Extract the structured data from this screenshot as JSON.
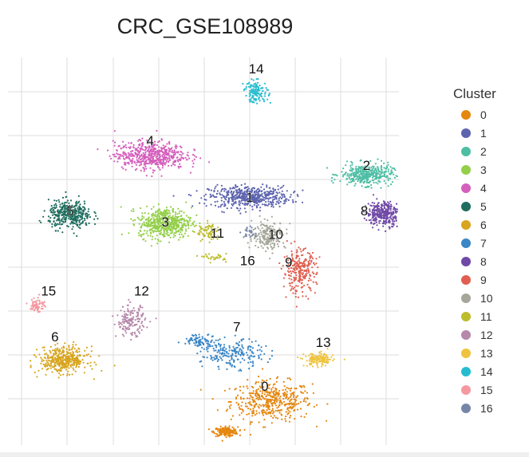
{
  "chart_data": {
    "type": "scatter",
    "title": "CRC_GSE108989",
    "xlabel": "",
    "ylabel": "",
    "grid": true,
    "legend": {
      "title": "Cluster",
      "placement": "right"
    },
    "clusters": [
      {
        "label": "0",
        "color": "#E5870F",
        "centers": [
          {
            "x": 0.05,
            "y": -3.5,
            "sx": 0.85,
            "sy": 0.65
          },
          {
            "x": -1.0,
            "y": -4.6,
            "sx": 0.25,
            "sy": 0.15
          }
        ],
        "count": 900
      },
      {
        "label": "1",
        "color": "#5D64AE",
        "centers": [
          {
            "x": -0.45,
            "y": 3.9,
            "sx": 0.85,
            "sy": 0.35
          }
        ],
        "count": 520
      },
      {
        "label": "2",
        "color": "#4DBEA4",
        "centers": [
          {
            "x": 2.25,
            "y": 4.7,
            "sx": 0.55,
            "sy": 0.35
          }
        ],
        "count": 380
      },
      {
        "label": "3",
        "color": "#93CF48",
        "centers": [
          {
            "x": -2.4,
            "y": 2.95,
            "sx": 0.55,
            "sy": 0.5
          }
        ],
        "count": 520
      },
      {
        "label": "4",
        "color": "#D45FBC",
        "centers": [
          {
            "x": -2.75,
            "y": 5.4,
            "sx": 0.75,
            "sy": 0.45
          }
        ],
        "count": 560
      },
      {
        "label": "5",
        "color": "#1F6E5F",
        "centers": [
          {
            "x": -4.6,
            "y": 3.25,
            "sx": 0.45,
            "sy": 0.45
          }
        ],
        "count": 380
      },
      {
        "label": "6",
        "color": "#D8A51F",
        "centers": [
          {
            "x": -4.75,
            "y": -2.0,
            "sx": 0.5,
            "sy": 0.42
          }
        ],
        "count": 420
      },
      {
        "label": "7",
        "color": "#3A86C6",
        "centers": [
          {
            "x": -0.85,
            "y": -1.8,
            "sx": 0.65,
            "sy": 0.45
          },
          {
            "x": -1.6,
            "y": -1.3,
            "sx": 0.35,
            "sy": 0.2
          }
        ],
        "count": 420
      },
      {
        "label": "8",
        "color": "#7048A6",
        "centers": [
          {
            "x": 2.65,
            "y": 3.3,
            "sx": 0.35,
            "sy": 0.4
          }
        ],
        "count": 320
      },
      {
        "label": "9",
        "color": "#E05F50",
        "centers": [
          {
            "x": 0.7,
            "y": 1.2,
            "sx": 0.35,
            "sy": 0.7
          }
        ],
        "count": 260
      },
      {
        "label": "10",
        "color": "#A6A79A",
        "centers": [
          {
            "x": 0.0,
            "y": 2.5,
            "sx": 0.35,
            "sy": 0.45
          }
        ],
        "count": 220
      },
      {
        "label": "11",
        "color": "#BDBC2D",
        "centers": [
          {
            "x": -1.4,
            "y": 2.6,
            "sx": 0.25,
            "sy": 0.3
          },
          {
            "x": -1.25,
            "y": 1.7,
            "sx": 0.25,
            "sy": 0.12
          }
        ],
        "count": 150
      },
      {
        "label": "12",
        "color": "#B688AA",
        "centers": [
          {
            "x": -3.2,
            "y": -0.6,
            "sx": 0.3,
            "sy": 0.5
          }
        ],
        "count": 160
      },
      {
        "label": "13",
        "color": "#EEC43F",
        "centers": [
          {
            "x": 1.15,
            "y": -2.0,
            "sx": 0.3,
            "sy": 0.22
          }
        ],
        "count": 160
      },
      {
        "label": "14",
        "color": "#26BCCF",
        "centers": [
          {
            "x": -0.3,
            "y": 7.7,
            "sx": 0.25,
            "sy": 0.35
          }
        ],
        "count": 130
      },
      {
        "label": "15",
        "color": "#F599A1",
        "centers": [
          {
            "x": -5.35,
            "y": 0.0,
            "sx": 0.15,
            "sy": 0.25
          }
        ],
        "count": 70
      },
      {
        "label": "16",
        "color": "#7686A8",
        "centers": [
          {
            "x": -0.45,
            "y": 2.6,
            "sx": 0.2,
            "sy": 0.2
          }
        ],
        "count": 25
      }
    ],
    "cluster_labels": [
      {
        "text": "14",
        "x": -0.3,
        "y": 8.5
      },
      {
        "text": "4",
        "x": -2.75,
        "y": 5.9
      },
      {
        "text": "2",
        "x": 2.25,
        "y": 5.0
      },
      {
        "text": "1",
        "x": -0.45,
        "y": 3.85
      },
      {
        "text": "5",
        "x": -4.6,
        "y": 3.35
      },
      {
        "text": "8",
        "x": 2.2,
        "y": 3.35
      },
      {
        "text": "3",
        "x": -2.4,
        "y": 2.95
      },
      {
        "text": "11",
        "x": -1.2,
        "y": 2.55
      },
      {
        "text": "10",
        "x": 0.15,
        "y": 2.5
      },
      {
        "text": "16",
        "x": -0.5,
        "y": 1.55
      },
      {
        "text": "9",
        "x": 0.45,
        "y": 1.5
      },
      {
        "text": "15",
        "x": -5.1,
        "y": 0.45
      },
      {
        "text": "12",
        "x": -2.95,
        "y": 0.45
      },
      {
        "text": "6",
        "x": -4.95,
        "y": -1.2
      },
      {
        "text": "7",
        "x": -0.75,
        "y": -0.85
      },
      {
        "text": "13",
        "x": 1.25,
        "y": -1.4
      },
      {
        "text": "0",
        "x": -0.1,
        "y": -3.0
      }
    ],
    "xlim": [
      -6,
      3
    ],
    "ylim": [
      -5,
      9
    ]
  }
}
